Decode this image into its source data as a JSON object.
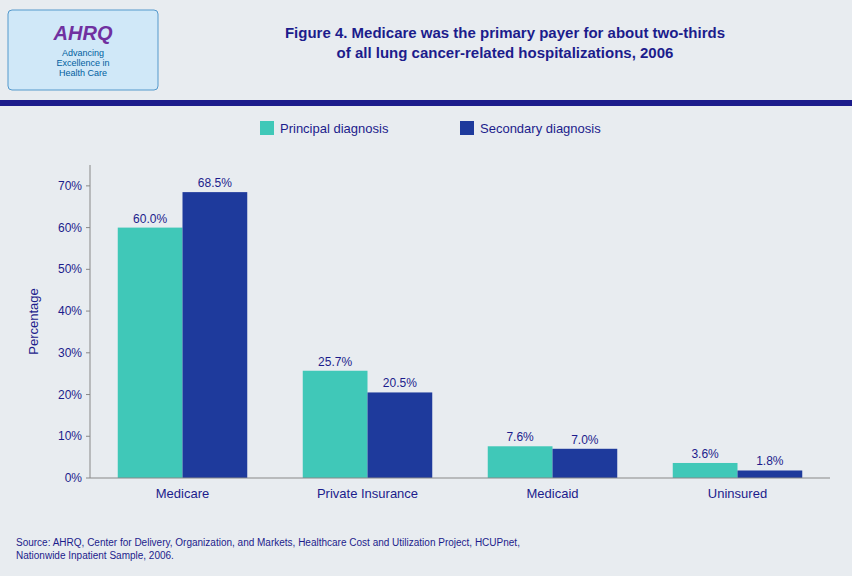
{
  "chart_data": {
    "type": "bar",
    "title": "Figure 4. Medicare was the primary payer for about two-thirds\nof all lung cancer-related hospitalizations, 2006",
    "ylabel": "Percentage",
    "categories": [
      "Medicare",
      "Private Insurance",
      "Medicaid",
      "Uninsured"
    ],
    "series": [
      {
        "name": "Principal diagnosis",
        "color": "#40C8B8",
        "values": [
          60.0,
          25.7,
          7.6,
          3.6
        ],
        "value_labels": [
          "60.0%",
          "25.7%",
          "7.6%",
          "3.6%"
        ]
      },
      {
        "name": "Secondary diagnosis",
        "color": "#1E3A9C",
        "values": [
          68.5,
          20.5,
          7.0,
          1.8
        ],
        "value_labels": [
          "68.5%",
          "20.5%",
          "7.0%",
          "1.8%"
        ]
      }
    ],
    "ylim": [
      0,
      75
    ],
    "yticks": [
      {
        "value": 0,
        "label": "0%"
      },
      {
        "value": 10,
        "label": "10%"
      },
      {
        "value": 20,
        "label": "20%"
      },
      {
        "value": 30,
        "label": "30%"
      },
      {
        "value": 40,
        "label": "40%"
      },
      {
        "value": 50,
        "label": "50%"
      },
      {
        "value": 60,
        "label": "60%"
      },
      {
        "value": 70,
        "label": "70%"
      }
    ],
    "grid": false,
    "legend": "top",
    "data_labels": true,
    "annotations": [
      "AHRQ",
      "Advancing\nExcellence in\nHealth Care",
      "Source: AHRQ, Center for Delivery, Organization, and Markets, Healthcare Cost and Utilization Project, HCUPnet,\nNationwide Inpatient Sample, 2006."
    ]
  }
}
